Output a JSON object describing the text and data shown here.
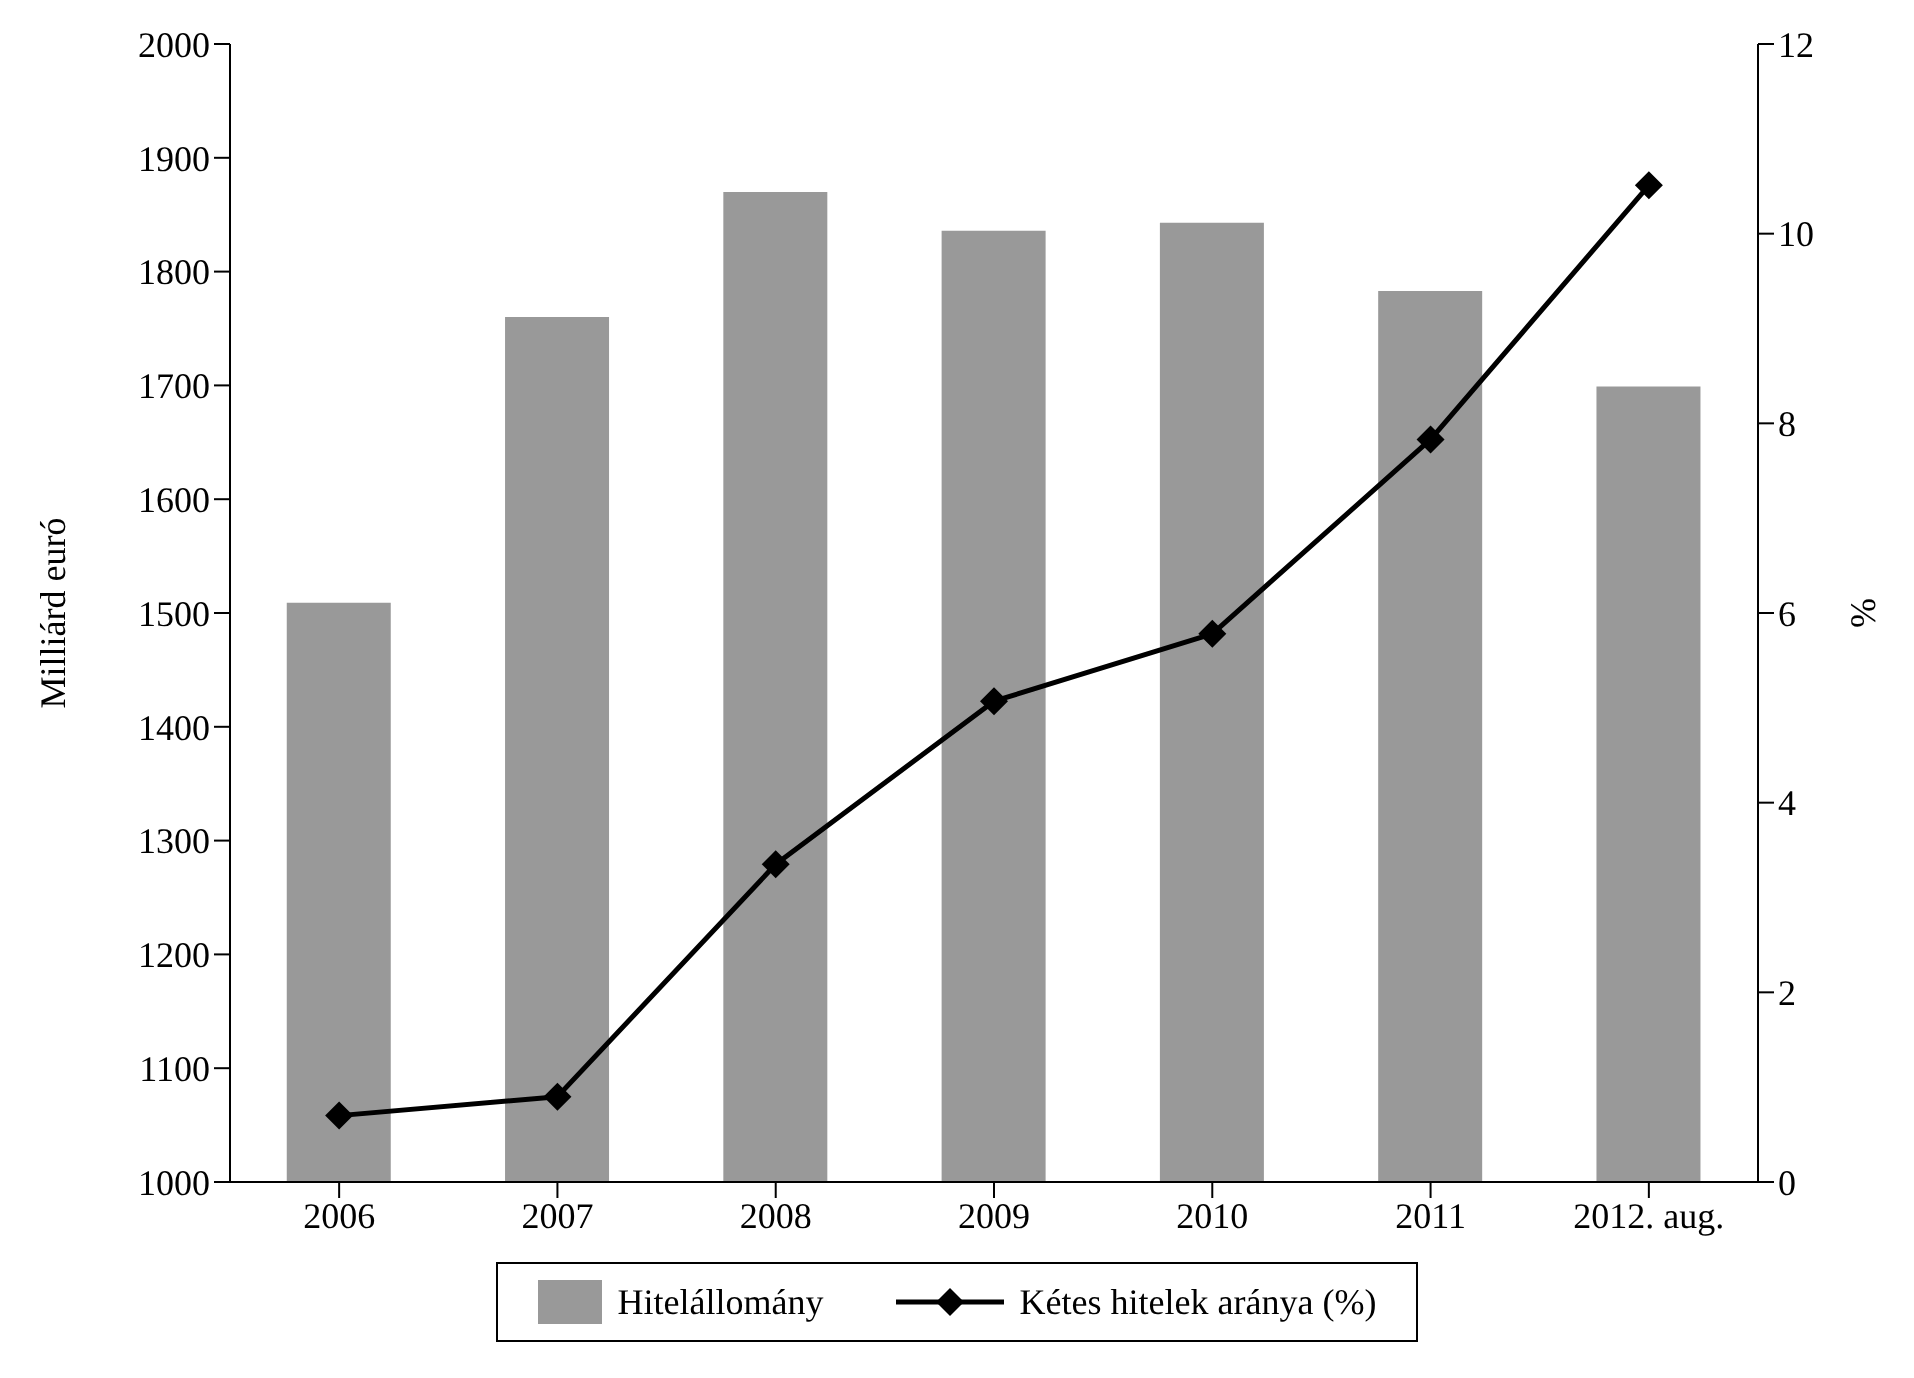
{
  "chart_data": {
    "type": "bar",
    "categories": [
      "2006",
      "2007",
      "2008",
      "2009",
      "2010",
      "2011",
      "2012. aug."
    ],
    "series": [
      {
        "name": "Hitelállomány",
        "color": "#999999",
        "values": [
          1509,
          1760,
          1870,
          1836,
          1843,
          1783,
          1699
        ]
      },
      {
        "name": "Kétes hitelek aránya (%)",
        "type": "line",
        "axis": "y2",
        "color": "#000000",
        "marker": "diamond",
        "values": [
          0.7,
          0.9,
          3.35,
          5.07,
          5.78,
          7.83,
          10.51
        ]
      }
    ],
    "ylabel": "Milliárd euró",
    "y2label": "%",
    "ylim": [
      1000,
      2000
    ],
    "yticks": [
      1000,
      1100,
      1200,
      1300,
      1400,
      1500,
      1600,
      1700,
      1800,
      1900,
      2000
    ],
    "y2lim": [
      0,
      12
    ],
    "y2ticks": [
      0,
      2,
      4,
      6,
      8,
      10,
      12
    ],
    "grid": false,
    "legend": "bottom"
  }
}
